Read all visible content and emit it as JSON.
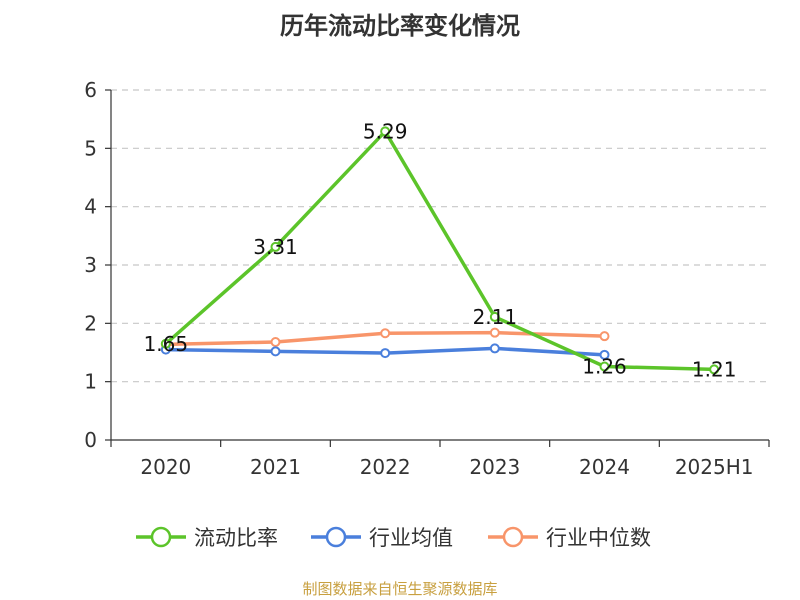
{
  "chart_data": {
    "type": "line",
    "title": "历年流动比率变化情况",
    "source": "制图数据来自恒生聚源数据库",
    "categories": [
      "2020",
      "2021",
      "2022",
      "2023",
      "2024",
      "2025H1"
    ],
    "ylim": [
      0,
      6
    ],
    "yticks": [
      "0",
      "1",
      "2",
      "3",
      "4",
      "5",
      "6"
    ],
    "grid": true,
    "legend_position": "bottom",
    "series": [
      {
        "name": "流动比率",
        "color": "#5cc42a",
        "values": [
          1.65,
          3.31,
          5.29,
          2.11,
          1.26,
          1.21
        ],
        "labels": [
          "1.65",
          "3.31",
          "5.29",
          "2.11",
          "1.26",
          "1.21"
        ]
      },
      {
        "name": "行业均值",
        "color": "#4a7fdc",
        "values": [
          1.55,
          1.52,
          1.49,
          1.57,
          1.46,
          null
        ]
      },
      {
        "name": "行业中位数",
        "color": "#f8956a",
        "values": [
          1.64,
          1.68,
          1.83,
          1.84,
          1.78,
          null
        ]
      }
    ]
  }
}
